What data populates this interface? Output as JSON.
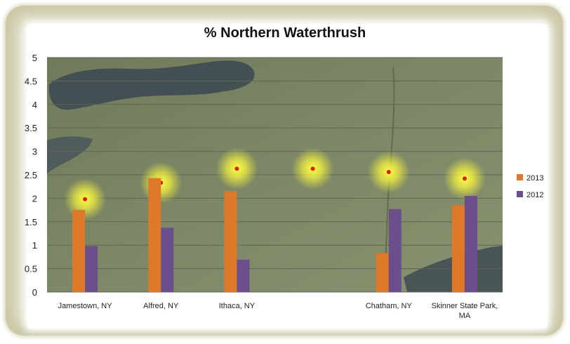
{
  "chart_data": {
    "type": "bar",
    "title": "% Northern Waterthrush",
    "xlabel": "",
    "ylabel": "",
    "ylim": [
      0,
      5
    ],
    "yticks": [
      "0",
      "0.5",
      "1",
      "1.5",
      "2",
      "2.5",
      "3",
      "3.5",
      "4",
      "4.5",
      "5"
    ],
    "categories": [
      [
        "Jamestown, NY"
      ],
      [
        "Alfred, NY"
      ],
      [
        "Ithaca, NY"
      ],
      [
        ""
      ],
      [
        "Chatham, NY"
      ],
      [
        "Skinner State Park,",
        "MA"
      ]
    ],
    "series": [
      {
        "name": "2013",
        "color": "#e0782a",
        "values": [
          1.75,
          2.43,
          2.15,
          null,
          0.83,
          1.85
        ]
      },
      {
        "name": "2012",
        "color": "#6b4f8c",
        "values": [
          0.98,
          1.37,
          0.69,
          null,
          1.77,
          2.05
        ]
      }
    ],
    "markers": [
      1.98,
      2.33,
      2.63,
      2.63,
      2.56,
      2.42
    ],
    "legend_position": "right",
    "background": "satellite map"
  }
}
